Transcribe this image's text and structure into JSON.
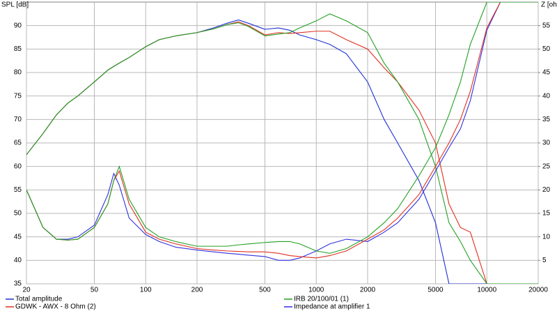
{
  "chart_data": {
    "type": "line",
    "ylabel": "SPL [dB]",
    "y2label": "Z [ohm]",
    "log_x": true,
    "grid": true,
    "x": [
      20,
      25,
      30,
      35,
      40,
      50,
      60,
      65,
      70,
      80,
      100,
      120,
      150,
      200,
      250,
      300,
      350,
      400,
      500,
      600,
      700,
      800,
      1000,
      1200,
      1500,
      2000,
      2500,
      3000,
      4000,
      5000,
      6000,
      7000,
      8000,
      10000,
      12000,
      15000,
      20000
    ],
    "xlim": [
      20,
      20000
    ],
    "xticks": [
      20,
      50,
      100,
      200,
      500,
      1000,
      2000,
      5000,
      10000,
      20000
    ],
    "ylim": [
      35,
      95
    ],
    "yticks": [
      35,
      40,
      45,
      50,
      55,
      60,
      65,
      70,
      75,
      80,
      85,
      90
    ],
    "y2lim": [
      0,
      60
    ],
    "y2ticks": [
      5,
      10,
      15,
      20,
      25,
      30,
      35,
      40,
      45,
      50,
      55
    ],
    "series": [
      {
        "name": "Total amplitude",
        "color": "#1f2fd6",
        "values": [
          62.5,
          67,
          71,
          73.5,
          75,
          78,
          80.5,
          81.3,
          82,
          83.2,
          85.5,
          87,
          87.8,
          88.5,
          89.5,
          90.5,
          91.2,
          90.5,
          89.2,
          89.5,
          89,
          88,
          87,
          86,
          84,
          78,
          70,
          65,
          57,
          48,
          35,
          35,
          35,
          35,
          35,
          35,
          35
        ]
      },
      {
        "name": "GDWK - AWX - 8 Ohm (2)",
        "color": "#e03020",
        "values": [
          62.5,
          67,
          71,
          73.5,
          75,
          78,
          80.5,
          81.3,
          82,
          83.2,
          85.5,
          87,
          87.8,
          88.5,
          89.3,
          90.2,
          90.8,
          90,
          88,
          88.5,
          88.3,
          88.5,
          88.8,
          88.8,
          87,
          85,
          81,
          78,
          72,
          65,
          52,
          47,
          46,
          35,
          35,
          35,
          35
        ]
      },
      {
        "name": "IRB 20/100/01 (1)",
        "color": "#22a022",
        "values": [
          62.5,
          67,
          71,
          73.5,
          75,
          78,
          80.5,
          81.3,
          82,
          83.2,
          85.5,
          87,
          87.8,
          88.5,
          89.3,
          90.2,
          90.6,
          89.8,
          87.8,
          88.2,
          88.5,
          89.5,
          91,
          92.5,
          91,
          88.5,
          82,
          78,
          70,
          60,
          48,
          44,
          40,
          35,
          35,
          35,
          35
        ]
      },
      {
        "name": "Impedance at amplifier 1",
        "color": "#3030e0",
        "axis": "y2",
        "values": [
          20,
          12,
          9.5,
          9.5,
          10,
          12.5,
          19,
          23.5,
          21,
          14,
          10.5,
          9,
          7.8,
          7.2,
          6.8,
          6.5,
          6.3,
          6.1,
          5.8,
          5,
          5,
          5.5,
          7,
          8.5,
          9.5,
          9,
          11,
          13,
          18,
          24,
          29,
          33,
          39,
          54,
          60,
          60,
          60
        ]
      },
      {
        "name": null,
        "color": "#e03020",
        "axis": "y2",
        "values": [
          20,
          12,
          9.5,
          9.3,
          9.5,
          12,
          17,
          22,
          24,
          17,
          11,
          9.5,
          8.5,
          7.5,
          7.2,
          7,
          6.9,
          6.8,
          6.8,
          6.5,
          6,
          5.8,
          5.5,
          6,
          7,
          9.5,
          11.5,
          14,
          19,
          25,
          30,
          35,
          41,
          54.5,
          60,
          60,
          60
        ]
      },
      {
        "name": null,
        "color": "#22a022",
        "axis": "y2",
        "values": [
          20,
          12,
          9.5,
          9.3,
          9.5,
          12,
          17,
          22,
          25,
          18,
          12,
          10,
          9,
          8,
          8,
          8,
          8.3,
          8.5,
          8.8,
          9,
          9,
          8.5,
          7,
          6.5,
          7.5,
          10,
          13,
          16,
          23,
          29,
          36,
          43,
          51,
          60,
          60,
          60,
          60
        ]
      }
    ]
  }
}
